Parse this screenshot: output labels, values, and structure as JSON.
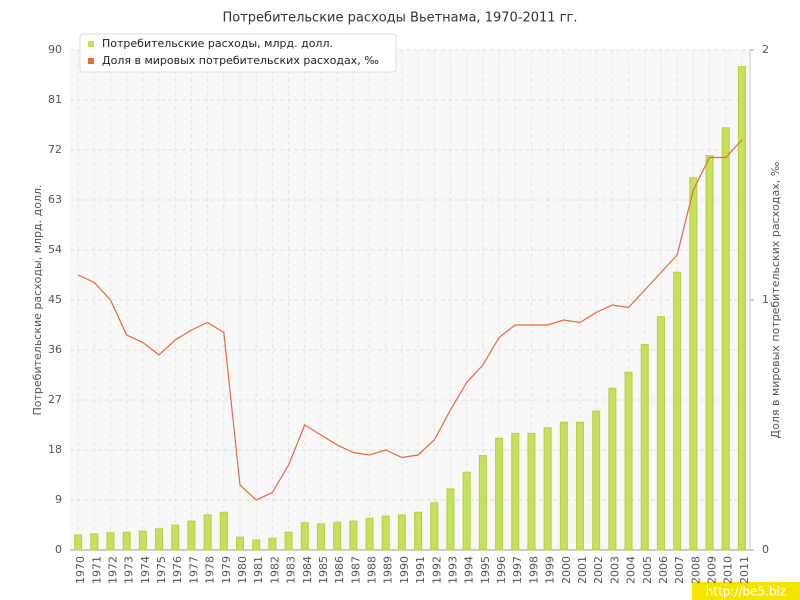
{
  "chart_data": {
    "type": "bar",
    "title": "Потребительские расходы Вьетнама, 1970-2011 гг.",
    "y_label": "Потребительские расходы, млрд. долл.",
    "y2_label": "Доля в мировых потребительских расходах, ‰",
    "watermark": "http://be5.biz",
    "categories": [
      "1970",
      "1971",
      "1972",
      "1973",
      "1974",
      "1975",
      "1976",
      "1977",
      "1978",
      "1979",
      "1980",
      "1981",
      "1982",
      "1983",
      "1984",
      "1985",
      "1986",
      "1987",
      "1988",
      "1989",
      "1990",
      "1991",
      "1992",
      "1993",
      "1994",
      "1995",
      "1996",
      "1997",
      "1998",
      "1999",
      "2000",
      "2001",
      "2002",
      "2003",
      "2004",
      "2005",
      "2006",
      "2007",
      "2008",
      "2009",
      "2010",
      "2011"
    ],
    "series": [
      {
        "name": "Потребительские расходы, млрд. долл.",
        "type": "bar",
        "color": "#c5e05a",
        "values": [
          2.7,
          2.9,
          3.1,
          3.2,
          3.4,
          3.8,
          4.5,
          5.2,
          6.3,
          6.8,
          2.3,
          1.8,
          2.1,
          3.2,
          4.9,
          4.7,
          5.0,
          5.2,
          5.7,
          6.1,
          6.3,
          6.8,
          8.5,
          11,
          14,
          17,
          20.1,
          21,
          21,
          22,
          23,
          23,
          25,
          29.1,
          32,
          37,
          42,
          50,
          67,
          71,
          76,
          87
        ]
      },
      {
        "name": "Доля в мировых потребительских расходах, ‰",
        "type": "line",
        "axis": "y2",
        "color": "#e8683a",
        "values": [
          1.1,
          1.07,
          1.0,
          0.86,
          0.83,
          0.78,
          0.84,
          0.88,
          0.91,
          0.87,
          0.26,
          0.2,
          0.23,
          0.34,
          0.5,
          0.46,
          0.42,
          0.39,
          0.38,
          0.4,
          0.37,
          0.38,
          0.44,
          0.56,
          0.67,
          0.74,
          0.85,
          0.9,
          0.9,
          0.9,
          0.92,
          0.91,
          0.95,
          0.98,
          0.97,
          1.04,
          1.11,
          1.18,
          1.44,
          1.57,
          1.57,
          1.64
        ]
      }
    ],
    "ylim": [
      0,
      90
    ],
    "yticks": [
      0,
      9,
      18,
      27,
      36,
      45,
      54,
      63,
      72,
      81,
      90
    ],
    "y2lim": [
      0,
      2
    ],
    "y2ticks": [
      0,
      1,
      2
    ],
    "grid": true,
    "legend": "top-left"
  }
}
